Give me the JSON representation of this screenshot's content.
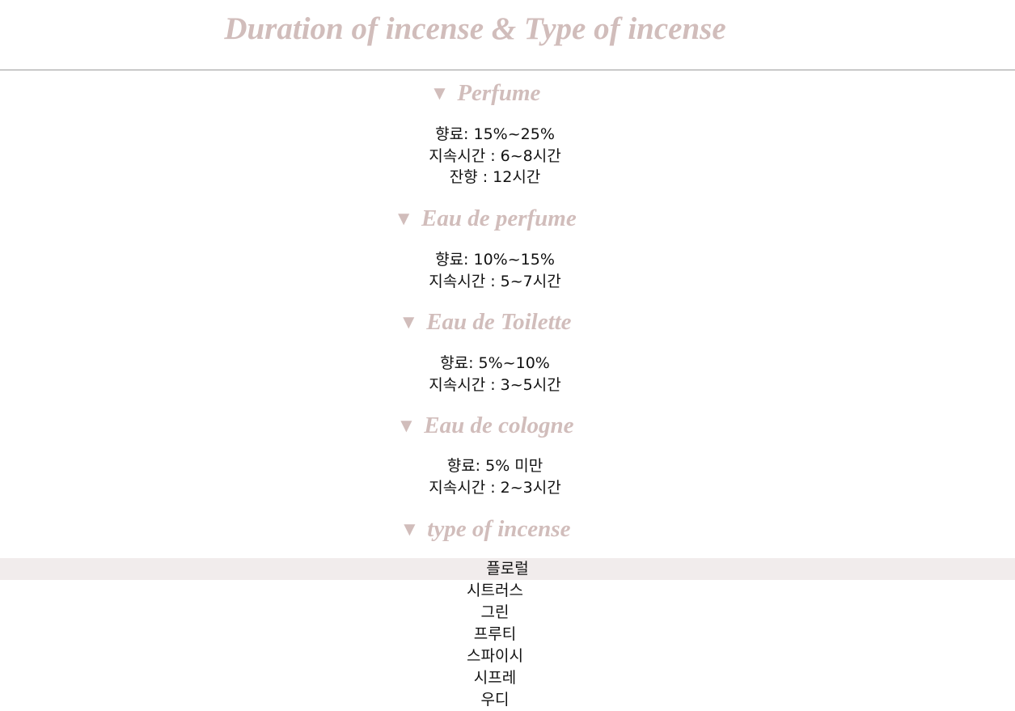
{
  "page": {
    "title": "Duration of incense & Type of incense"
  },
  "sections": [
    {
      "arrow": "▼",
      "title": "Perfume",
      "lines": [
        "향료: 15%~25%",
        "지속시간 : 6~8시간",
        "잔향 : 12시간"
      ]
    },
    {
      "arrow": "▼",
      "title": "Eau de perfume",
      "lines": [
        "향료: 10%~15%",
        "지속시간 : 5~7시간"
      ]
    },
    {
      "arrow": "▼",
      "title": "Eau de Toilette",
      "lines": [
        "향료: 5%~10%",
        "지속시간 : 3~5시간"
      ]
    },
    {
      "arrow": "▼",
      "title": "Eau de cologne",
      "lines": [
        "향료: 5% 미만",
        "지속시간 : 2~3시간"
      ]
    }
  ],
  "types": {
    "arrow": "▼",
    "title": "type of incense",
    "items": [
      "플로럴",
      "시트러스",
      "그린",
      "프루티",
      "스파이시",
      "시프레",
      "우디"
    ],
    "active_index": 0
  },
  "colors": {
    "heading": "#d1bdbb",
    "active_row": "#f1ecec",
    "divider": "#9a9a9a",
    "text": "#111111"
  }
}
